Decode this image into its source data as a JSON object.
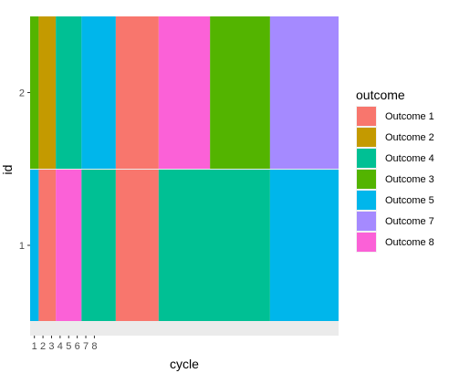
{
  "chart_data": {
    "type": "bar",
    "orientation": "horizontal-stacked",
    "xlabel": "cycle",
    "ylabel": "id",
    "categories": [
      "1",
      "2"
    ],
    "x_tick_labels": [
      "1",
      "2",
      "3",
      "4",
      "5",
      "6",
      "7",
      "8"
    ],
    "grid": true,
    "legend": {
      "title": "outcome",
      "placement": "right",
      "entries": [
        {
          "label": "Outcome 1",
          "color": "#F8766D"
        },
        {
          "label": "Outcome 2",
          "color": "#C49A00"
        },
        {
          "label": "Outcome 4",
          "color": "#00C094"
        },
        {
          "label": "Outcome 3",
          "color": "#53B400"
        },
        {
          "label": "Outcome 5",
          "color": "#00B6EB"
        },
        {
          "label": "Outcome 7",
          "color": "#A58AFF"
        },
        {
          "label": "Outcome 8",
          "color": "#FB61D7"
        }
      ]
    },
    "rows": [
      {
        "id": "2",
        "segments": [
          {
            "outcome": "Outcome 3",
            "start": 0,
            "end": 1
          },
          {
            "outcome": "Outcome 2",
            "start": 1,
            "end": 3
          },
          {
            "outcome": "Outcome 4",
            "start": 3,
            "end": 6
          },
          {
            "outcome": "Outcome 5",
            "start": 6,
            "end": 10
          },
          {
            "outcome": "Outcome 1",
            "start": 10,
            "end": 15
          },
          {
            "outcome": "Outcome 8",
            "start": 15,
            "end": 21
          },
          {
            "outcome": "Outcome 3",
            "start": 21,
            "end": 28
          },
          {
            "outcome": "Outcome 7",
            "start": 28,
            "end": 36
          }
        ]
      },
      {
        "id": "1",
        "segments": [
          {
            "outcome": "Outcome 5",
            "start": 0,
            "end": 1
          },
          {
            "outcome": "Outcome 1",
            "start": 1,
            "end": 3
          },
          {
            "outcome": "Outcome 8",
            "start": 3,
            "end": 6
          },
          {
            "outcome": "Outcome 4",
            "start": 6,
            "end": 10
          },
          {
            "outcome": "Outcome 1",
            "start": 10,
            "end": 15
          },
          {
            "outcome": "Outcome 4",
            "start": 15,
            "end": 28
          },
          {
            "outcome": "Outcome 5",
            "start": 28,
            "end": 36
          }
        ]
      }
    ]
  }
}
